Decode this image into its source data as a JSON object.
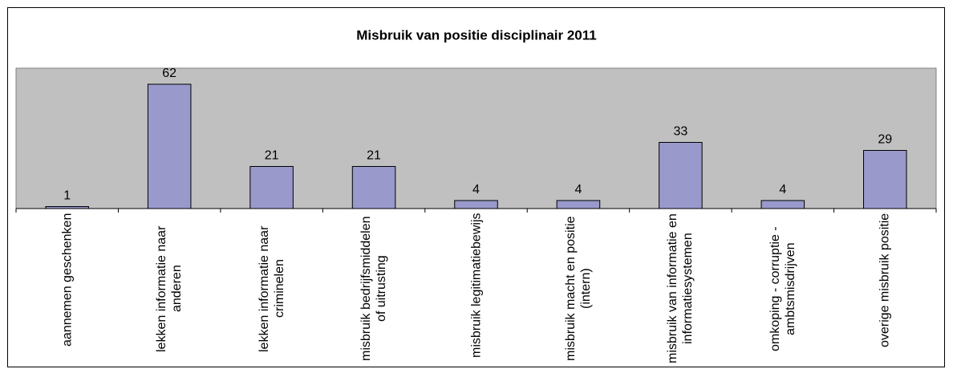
{
  "chart_data": {
    "type": "bar",
    "title": "Misbruik van positie disciplinair 2011",
    "categories": [
      "aannemen geschenken",
      "lekken informatie naar anderen",
      "lekken informatie naar criminelen",
      "misbruik bedrijfsmiddelen of uitrusting",
      "misbruik legitimatiebewijs",
      "misbruik macht en positie (intern)",
      "misbruik van informatie en informatiesystemen",
      "omkoping - corruptie - ambtsmisdrijven",
      "overige misbruik positie"
    ],
    "values": [
      1,
      62,
      21,
      21,
      4,
      4,
      33,
      4,
      29
    ],
    "color": "#9999cc",
    "plot_background": "#c0c0c0",
    "ylim": [
      0,
      70
    ]
  }
}
